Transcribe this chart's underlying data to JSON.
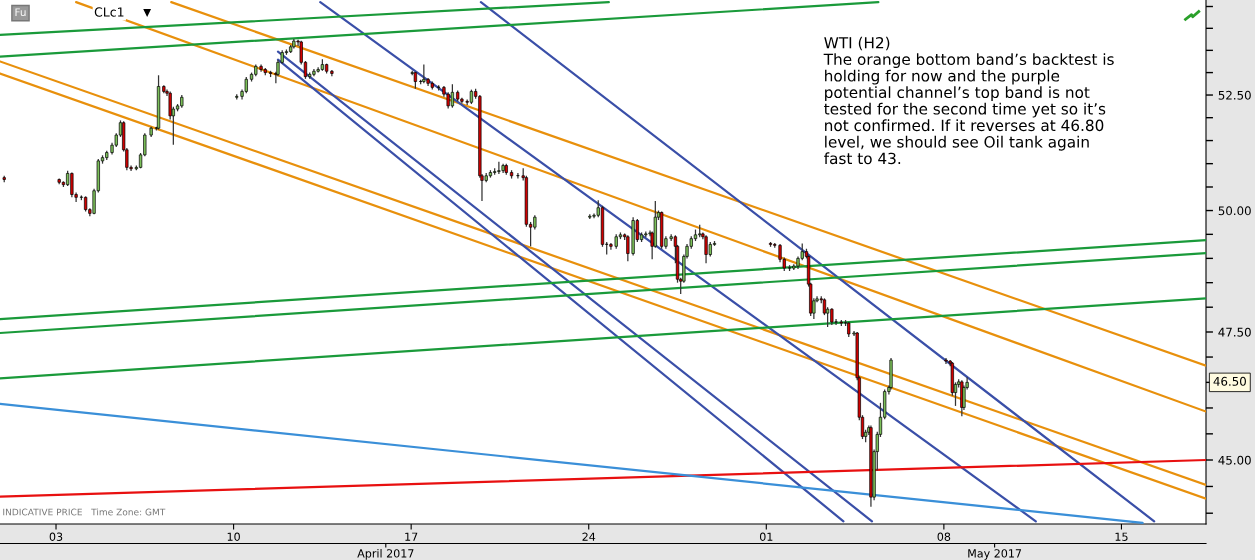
{
  "chart_data": {
    "type": "candlestick",
    "title": "CLc1",
    "annotations": [
      "WTI (H2)\nThe orange bottom band’s backtest is\nholding for now and the purple\npotential channel’s top band is not\ntested for the second time yet so it’s\nnot confirmed. If it reverses at 46.80\nlevel, we should see Oil tank again\nfast to 43.",
      "Fu",
      "INDICATIVE PRICE   Time Zone: GMT",
      "46.50"
    ],
    "x": [
      "2017-03-31T23:00",
      "2017-04-03T03:00",
      "2017-04-03T07:00",
      "2017-04-03T11:00",
      "2017-04-03T15:00",
      "2017-04-03T19:00",
      "2017-04-04T00:00",
      "2017-04-04T04:00",
      "2017-04-04T08:00",
      "2017-04-04T12:00",
      "2017-04-04T16:00",
      "2017-04-04T20:00",
      "2017-04-05T00:00",
      "2017-04-05T05:00",
      "2017-04-05T09:00",
      "2017-04-05T13:00",
      "2017-04-05T16:00",
      "2017-04-05T19:00",
      "2017-04-05T23:00",
      "2017-04-06T04:00",
      "2017-04-06T08:00",
      "2017-04-06T12:00",
      "2017-04-06T18:00",
      "2017-04-06T23:00",
      "2017-04-07T01:00",
      "2017-04-07T06:00",
      "2017-04-07T09:00",
      "2017-04-07T12:00",
      "2017-04-07T15:00",
      "2017-04-07T19:00",
      "2017-04-07T23:00",
      "2017-04-10T03:00",
      "2017-04-10T08:00",
      "2017-04-10T12:00",
      "2017-04-10T17:00",
      "2017-04-10T21:00",
      "2017-04-11T02:00",
      "2017-04-11T06:00",
      "2017-04-11T11:00",
      "2017-04-11T16:00",
      "2017-04-11T18:00",
      "2017-04-11T22:00",
      "2017-04-12T02:00",
      "2017-04-12T06:00",
      "2017-04-12T09:00",
      "2017-04-12T13:00",
      "2017-04-12T16:00",
      "2017-04-12T20:00",
      "2017-04-13T00:00",
      "2017-04-13T04:00",
      "2017-04-13T08:00",
      "2017-04-13T12:00",
      "2017-04-13T16:00",
      "2017-04-13T21:00",
      "2017-04-17T01:00",
      "2017-04-17T04:00",
      "2017-04-17T09:00",
      "2017-04-17T12:00",
      "2017-04-17T16:00",
      "2017-04-17T20:00",
      "2017-04-18T02:00",
      "2017-04-18T07:00",
      "2017-04-18T11:00",
      "2017-04-18T15:00",
      "2017-04-18T20:00",
      "2017-04-19T00:00",
      "2017-04-19T05:00",
      "2017-04-19T09:00",
      "2017-04-19T13:00",
      "2017-04-19T17:00",
      "2017-04-19T19:00",
      "2017-04-19T23:00",
      "2017-04-20T03:00",
      "2017-04-20T07:00",
      "2017-04-20T11:00",
      "2017-04-20T15:00",
      "2017-04-20T18:00",
      "2017-04-20T23:00",
      "2017-04-21T05:00",
      "2017-04-21T10:00",
      "2017-04-21T13:00",
      "2017-04-21T17:00",
      "2017-04-21T21:00",
      "2017-04-24T01:00",
      "2017-04-24T05:00",
      "2017-04-24T09:00",
      "2017-04-24T13:00",
      "2017-04-24T17:00",
      "2017-04-24T21:00",
      "2017-04-25T02:00",
      "2017-04-25T06:00",
      "2017-04-25T10:00",
      "2017-04-25T13:00",
      "2017-04-25T18:00",
      "2017-04-25T22:00",
      "2017-04-26T02:00",
      "2017-04-26T06:00",
      "2017-04-26T10:00",
      "2017-04-26T12:00",
      "2017-04-26T15:00",
      "2017-04-26T18:00",
      "2017-04-26T21:00",
      "2017-04-27T01:00",
      "2017-04-27T06:00",
      "2017-04-27T10:00",
      "2017-04-27T12:00",
      "2017-04-27T15:00",
      "2017-04-27T18:00",
      "2017-04-27T21:00",
      "2017-04-28T01:00",
      "2017-04-28T05:00",
      "2017-04-28T09:00",
      "2017-04-28T12:00",
      "2017-04-28T15:00",
      "2017-04-28T19:00",
      "2017-04-28T23:00",
      "2017-05-01T04:00",
      "2017-05-01T08:00",
      "2017-05-01T13:00",
      "2017-05-01T17:00",
      "2017-05-01T22:00",
      "2017-05-02T02:00",
      "2017-05-02T06:00",
      "2017-05-02T10:00",
      "2017-05-02T14:00",
      "2017-05-02T16:00",
      "2017-05-02T18:00",
      "2017-05-02T21:00",
      "2017-05-03T00:00",
      "2017-05-03T04:00",
      "2017-05-03T07:00",
      "2017-05-03T10:00",
      "2017-05-03T14:00",
      "2017-05-03T18:00",
      "2017-05-03T23:00",
      "2017-05-04T03:00",
      "2017-05-04T06:00",
      "2017-05-04T11:00",
      "2017-05-04T14:00",
      "2017-05-04T16:00",
      "2017-05-04T19:00",
      "2017-05-04T22:00",
      "2017-05-05T01:00",
      "2017-05-05T03:00",
      "2017-05-05T06:00",
      "2017-05-05T09:00",
      "2017-05-05T12:00",
      "2017-05-05T16:00",
      "2017-05-05T20:00",
      "2017-05-05T22:00",
      "2017-05-08T02:00",
      "2017-05-08T06:00",
      "2017-05-08T08:00",
      "2017-05-08T11:00",
      "2017-05-08T14:00",
      "2017-05-08T17:00",
      "2017-05-08T19:00",
      "2017-05-08T22:00"
    ],
    "ohlc": [
      [
        50.7,
        50.74,
        50.6,
        50.66
      ],
      [
        50.66,
        50.68,
        50.56,
        50.6
      ],
      [
        50.6,
        50.62,
        50.5,
        50.55
      ],
      [
        50.55,
        50.85,
        50.52,
        50.79
      ],
      [
        50.79,
        50.81,
        50.28,
        50.34
      ],
      [
        50.34,
        50.38,
        50.18,
        50.28
      ],
      [
        50.28,
        50.32,
        50.22,
        50.28
      ],
      [
        50.28,
        50.3,
        49.98,
        50.02
      ],
      [
        50.02,
        50.05,
        49.88,
        49.94
      ],
      [
        49.94,
        50.46,
        49.92,
        50.42
      ],
      [
        50.42,
        51.1,
        50.38,
        51.06
      ],
      [
        51.06,
        51.18,
        51.0,
        51.13
      ],
      [
        51.13,
        51.28,
        51.08,
        51.24
      ],
      [
        51.24,
        51.45,
        51.2,
        51.4
      ],
      [
        51.4,
        51.66,
        51.36,
        51.62
      ],
      [
        51.62,
        51.94,
        51.58,
        51.89
      ],
      [
        51.89,
        51.92,
        51.26,
        51.3
      ],
      [
        51.3,
        51.34,
        50.86,
        50.92
      ],
      [
        50.92,
        50.96,
        50.84,
        50.89
      ],
      [
        50.89,
        50.96,
        50.86,
        50.92
      ],
      [
        50.92,
        51.23,
        50.9,
        51.19
      ],
      [
        51.19,
        51.66,
        51.16,
        51.62
      ],
      [
        51.62,
        51.8,
        51.58,
        51.77
      ],
      [
        51.77,
        51.8,
        51.72,
        51.77
      ],
      [
        51.77,
        52.94,
        51.74,
        52.69
      ],
      [
        52.69,
        52.72,
        52.54,
        52.58
      ],
      [
        52.58,
        52.62,
        52.48,
        52.54
      ],
      [
        52.54,
        52.58,
        51.96,
        52.04
      ],
      [
        52.04,
        52.24,
        51.41,
        52.19
      ],
      [
        52.19,
        52.3,
        52.14,
        52.26
      ],
      [
        52.26,
        52.5,
        52.22,
        52.45
      ],
      [
        52.45,
        52.52,
        52.4,
        52.47
      ],
      [
        52.47,
        52.62,
        52.4,
        52.58
      ],
      [
        52.58,
        52.9,
        52.54,
        52.85
      ],
      [
        52.85,
        53.0,
        52.8,
        52.96
      ],
      [
        52.96,
        53.18,
        52.92,
        53.14
      ],
      [
        53.14,
        53.18,
        53.02,
        53.07
      ],
      [
        53.07,
        53.1,
        52.94,
        53.0
      ],
      [
        53.0,
        53.04,
        52.9,
        52.98
      ],
      [
        52.98,
        53.02,
        52.76,
        52.96
      ],
      [
        52.96,
        53.28,
        52.92,
        53.23
      ],
      [
        53.23,
        53.5,
        53.2,
        53.45
      ],
      [
        53.45,
        53.52,
        53.4,
        53.47
      ],
      [
        53.47,
        53.62,
        53.44,
        53.58
      ],
      [
        53.58,
        53.76,
        53.54,
        53.71
      ],
      [
        53.71,
        53.74,
        53.6,
        53.69
      ],
      [
        53.69,
        53.72,
        53.18,
        53.23
      ],
      [
        53.23,
        53.26,
        52.86,
        52.91
      ],
      [
        52.91,
        53.0,
        52.86,
        52.96
      ],
      [
        52.96,
        53.08,
        52.92,
        53.03
      ],
      [
        53.03,
        53.12,
        53.0,
        53.07
      ],
      [
        53.07,
        53.3,
        53.04,
        53.18
      ],
      [
        53.18,
        53.2,
        52.98,
        53.03
      ],
      [
        53.03,
        53.06,
        52.92,
        52.98
      ],
      [
        52.98,
        53.04,
        52.94,
        53.0
      ],
      [
        53.0,
        53.02,
        52.64,
        52.8
      ],
      [
        52.8,
        52.84,
        52.74,
        52.8
      ],
      [
        52.8,
        53.18,
        52.76,
        52.85
      ],
      [
        52.85,
        52.88,
        52.7,
        52.76
      ],
      [
        52.76,
        52.8,
        52.62,
        52.67
      ],
      [
        52.67,
        52.72,
        52.6,
        52.67
      ],
      [
        52.67,
        52.7,
        52.46,
        52.52
      ],
      [
        52.52,
        52.56,
        52.2,
        52.26
      ],
      [
        52.26,
        52.74,
        52.22,
        52.56
      ],
      [
        52.56,
        52.6,
        52.36,
        52.41
      ],
      [
        52.41,
        52.44,
        52.32,
        52.36
      ],
      [
        52.36,
        52.4,
        52.28,
        52.34
      ],
      [
        52.34,
        52.62,
        52.3,
        52.58
      ],
      [
        52.58,
        52.64,
        52.42,
        52.47
      ],
      [
        52.47,
        52.5,
        50.7,
        50.74
      ],
      [
        50.74,
        50.78,
        50.2,
        50.64
      ],
      [
        50.64,
        50.8,
        50.6,
        50.74
      ],
      [
        50.74,
        50.86,
        50.7,
        50.81
      ],
      [
        50.81,
        50.9,
        50.76,
        50.83
      ],
      [
        50.83,
        51.04,
        50.78,
        50.85
      ],
      [
        50.85,
        51.0,
        50.8,
        50.96
      ],
      [
        50.96,
        51.0,
        50.76,
        50.81
      ],
      [
        50.81,
        50.86,
        50.68,
        50.74
      ],
      [
        50.74,
        50.8,
        50.68,
        50.74
      ],
      [
        50.74,
        50.9,
        50.64,
        50.7
      ],
      [
        50.7,
        50.74,
        49.66,
        49.71
      ],
      [
        49.71,
        49.76,
        49.25,
        49.65
      ],
      [
        49.65,
        49.9,
        49.6,
        49.86
      ],
      [
        49.86,
        49.92,
        49.82,
        49.88
      ],
      [
        49.88,
        49.94,
        49.84,
        49.9
      ],
      [
        49.9,
        50.22,
        49.86,
        50.06
      ],
      [
        50.06,
        50.1,
        49.24,
        49.29
      ],
      [
        49.29,
        49.34,
        49.08,
        49.29
      ],
      [
        49.29,
        49.32,
        49.18,
        49.25
      ],
      [
        49.25,
        49.5,
        49.2,
        49.45
      ],
      [
        49.45,
        49.54,
        49.4,
        49.49
      ],
      [
        49.49,
        49.52,
        49.38,
        49.45
      ],
      [
        49.45,
        49.48,
        48.94,
        49.1
      ],
      [
        49.1,
        49.86,
        49.06,
        49.79
      ],
      [
        49.79,
        49.82,
        49.34,
        49.39
      ],
      [
        49.39,
        49.54,
        49.34,
        49.49
      ],
      [
        49.49,
        49.56,
        49.44,
        49.51
      ],
      [
        49.51,
        49.58,
        49.46,
        49.53
      ],
      [
        49.53,
        49.56,
        48.98,
        49.25
      ],
      [
        49.25,
        50.2,
        49.22,
        49.86
      ],
      [
        49.86,
        50.0,
        49.8,
        49.96
      ],
      [
        49.96,
        49.98,
        49.2,
        49.25
      ],
      [
        49.25,
        49.46,
        49.2,
        49.41
      ],
      [
        49.41,
        49.5,
        49.36,
        49.45
      ],
      [
        49.45,
        49.48,
        48.9,
        49.25
      ],
      [
        49.25,
        49.28,
        48.5,
        48.57
      ],
      [
        48.57,
        48.6,
        48.27,
        48.53
      ],
      [
        48.53,
        49.08,
        48.5,
        49.04
      ],
      [
        49.04,
        49.3,
        49.0,
        49.25
      ],
      [
        49.25,
        49.46,
        49.2,
        49.41
      ],
      [
        49.41,
        49.6,
        49.36,
        49.49
      ],
      [
        49.49,
        49.7,
        49.44,
        49.51
      ],
      [
        49.51,
        49.54,
        49.4,
        49.45
      ],
      [
        49.45,
        49.48,
        48.9,
        49.08
      ],
      [
        49.08,
        49.34,
        49.04,
        49.29
      ],
      [
        49.29,
        49.36,
        49.26,
        49.31
      ],
      [
        49.31,
        49.34,
        49.24,
        49.29
      ],
      [
        49.29,
        49.32,
        49.22,
        49.27
      ],
      [
        49.27,
        49.3,
        48.92,
        48.98
      ],
      [
        48.98,
        49.02,
        48.74,
        48.8
      ],
      [
        48.8,
        48.86,
        48.74,
        48.8
      ],
      [
        48.8,
        48.88,
        48.76,
        48.84
      ],
      [
        48.84,
        49.04,
        48.78,
        49.0
      ],
      [
        49.0,
        49.31,
        48.96,
        49.14
      ],
      [
        49.14,
        49.2,
        49.0,
        49.04
      ],
      [
        49.04,
        49.06,
        48.42,
        48.47
      ],
      [
        48.47,
        48.5,
        47.82,
        47.88
      ],
      [
        47.88,
        48.18,
        47.76,
        48.13
      ],
      [
        48.13,
        48.22,
        48.1,
        48.17
      ],
      [
        48.17,
        48.22,
        48.08,
        48.15
      ],
      [
        48.15,
        48.18,
        47.84,
        47.88
      ],
      [
        47.88,
        48.0,
        47.6,
        47.96
      ],
      [
        47.96,
        47.98,
        47.64,
        47.7
      ],
      [
        47.7,
        47.76,
        47.64,
        47.7
      ],
      [
        47.7,
        47.74,
        47.62,
        47.68
      ],
      [
        47.68,
        47.74,
        47.62,
        47.68
      ],
      [
        47.68,
        47.7,
        47.4,
        47.46
      ],
      [
        47.46,
        47.52,
        47.42,
        47.48
      ],
      [
        47.48,
        47.5,
        46.54,
        46.59
      ],
      [
        46.59,
        46.62,
        45.76,
        45.82
      ],
      [
        45.82,
        45.86,
        45.4,
        45.45
      ],
      [
        45.45,
        45.58,
        45.34,
        45.53
      ],
      [
        45.53,
        45.66,
        45.48,
        45.62
      ],
      [
        45.62,
        45.66,
        44.12,
        44.3
      ],
      [
        44.3,
        45.2,
        44.24,
        45.16
      ],
      [
        45.16,
        45.54,
        44.8,
        45.49
      ],
      [
        45.49,
        46.1,
        45.44,
        45.82
      ],
      [
        45.82,
        46.36,
        45.78,
        46.32
      ],
      [
        46.32,
        46.44,
        46.26,
        46.4
      ],
      [
        46.4,
        46.98,
        46.36,
        46.94
      ],
      [
        46.94,
        46.98,
        46.86,
        46.92
      ],
      [
        46.92,
        46.94,
        46.82,
        46.88
      ],
      [
        46.88,
        46.9,
        46.24,
        46.3
      ],
      [
        46.3,
        46.5,
        46.04,
        46.46
      ],
      [
        46.46,
        46.56,
        46.4,
        46.51
      ],
      [
        46.51,
        46.54,
        45.84,
        46.01
      ],
      [
        46.01,
        46.44,
        45.96,
        46.4
      ],
      [
        46.4,
        46.6,
        46.36,
        46.5
      ]
    ],
    "series": [
      {
        "type": "line",
        "color": "#e8900c",
        "x": [
          "2017-04-07T13:00",
          "2017-05-18T08:00"
        ],
        "values": [
          54.6,
          46.83
        ]
      },
      {
        "type": "line",
        "color": "#e8900c",
        "x": [
          "2017-04-03T19:00",
          "2017-05-18T08:00"
        ],
        "values": [
          54.6,
          45.93
        ]
      },
      {
        "type": "line",
        "color": "#e8900c",
        "x": [
          "2017-03-31T19:00",
          "2017-05-18T08:00"
        ],
        "values": [
          53.25,
          44.53
        ]
      },
      {
        "type": "line",
        "color": "#e8900c",
        "x": [
          "2017-03-31T19:00",
          "2017-05-18T08:00"
        ],
        "values": [
          52.98,
          44.27
        ]
      },
      {
        "type": "line",
        "color": "#3a4fa8",
        "x": [
          "2017-04-13T10:00",
          "2017-05-11T15:00"
        ],
        "values": [
          54.6,
          43.85
        ]
      },
      {
        "type": "line",
        "color": "#3a4fa8",
        "x": [
          "2017-04-19T18:00",
          "2017-05-16T07:00"
        ],
        "values": [
          54.6,
          43.85
        ]
      },
      {
        "type": "line",
        "color": "#3a4fa8",
        "x": [
          "2017-04-11T18:00",
          "2017-05-05T04:00"
        ],
        "values": [
          53.47,
          43.85
        ]
      },
      {
        "type": "line",
        "color": "#3a4fa8",
        "x": [
          "2017-04-11T18:00",
          "2017-05-04T01:00"
        ],
        "values": [
          53.29,
          43.85
        ]
      },
      {
        "type": "line",
        "color": "#1a9a3a",
        "x": [
          "2017-03-31T19:00",
          "2017-04-24T19:00"
        ],
        "values": [
          53.85,
          54.6
        ]
      },
      {
        "type": "line",
        "color": "#1a9a3a",
        "x": [
          "2017-03-31T19:00",
          "2017-05-05T10:00"
        ],
        "values": [
          53.36,
          54.6
        ]
      },
      {
        "type": "line",
        "color": "#1a9a3a",
        "x": [
          "2017-03-31T19:00",
          "2017-05-18T08:00"
        ],
        "values": [
          47.76,
          49.38
        ]
      },
      {
        "type": "line",
        "color": "#1a9a3a",
        "x": [
          "2017-03-31T19:00",
          "2017-05-18T08:00"
        ],
        "values": [
          47.48,
          49.11
        ]
      },
      {
        "type": "line",
        "color": "#1a9a3a",
        "x": [
          "2017-03-31T19:00",
          "2017-05-18T08:00"
        ],
        "values": [
          46.58,
          48.18
        ]
      },
      {
        "type": "line",
        "color": "#e81010",
        "x": [
          "2017-03-31T19:00",
          "2017-05-18T08:00"
        ],
        "values": [
          44.31,
          45.0
        ]
      },
      {
        "type": "line",
        "color": "#3a8fd8",
        "x": [
          "2017-03-31T19:00",
          "2017-05-15T20:00"
        ],
        "values": [
          46.08,
          43.82
        ]
      }
    ],
    "log": "y",
    "xlim": [
      "2017-03-31T19:00",
      "2017-05-18T08:00"
    ],
    "xticks": [
      {
        "value": "2017-04-03",
        "label": "03"
      },
      {
        "value": "2017-04-10",
        "label": "10"
      },
      {
        "value": "2017-04-17",
        "label": "17"
      },
      {
        "value": "2017-04-24",
        "label": "24"
      },
      {
        "value": "2017-05-01",
        "label": "01"
      },
      {
        "value": "2017-05-08",
        "label": "08"
      },
      {
        "value": "2017-05-15",
        "label": "15"
      }
    ],
    "x2lim": [
      "2017-03-31T19:00",
      "2017-05-18T08:00"
    ],
    "x2ticks": [
      {
        "value": "2017-04-16",
        "label": "April 2017"
      },
      {
        "value": "2017-05-10",
        "label": "May 2017"
      }
    ],
    "ylim": [
      43.8,
      54.65
    ],
    "yticks": [
      {
        "value": 44,
        "label": null
      },
      {
        "value": 44.5,
        "label": null
      },
      {
        "value": 45,
        "label": "45.00"
      },
      {
        "value": 45.5,
        "label": null
      },
      {
        "value": 46,
        "label": null
      },
      {
        "value": 46.5,
        "label": null
      },
      {
        "value": 47,
        "label": null
      },
      {
        "value": 47.5,
        "label": "47.50"
      },
      {
        "value": 48,
        "label": null
      },
      {
        "value": 48.5,
        "label": null
      },
      {
        "value": 49,
        "label": null
      },
      {
        "value": 49.5,
        "label": null
      },
      {
        "value": 50,
        "label": "50.00"
      },
      {
        "value": 50.5,
        "label": null
      },
      {
        "value": 51,
        "label": null
      },
      {
        "value": 51.5,
        "label": null
      },
      {
        "value": 52,
        "label": null
      },
      {
        "value": 52.5,
        "label": "52.50"
      },
      {
        "value": 53,
        "label": null
      },
      {
        "value": 53.5,
        "label": null
      },
      {
        "value": 54,
        "label": null
      },
      {
        "value": 54.5,
        "label": null
      }
    ],
    "grid": false
  }
}
